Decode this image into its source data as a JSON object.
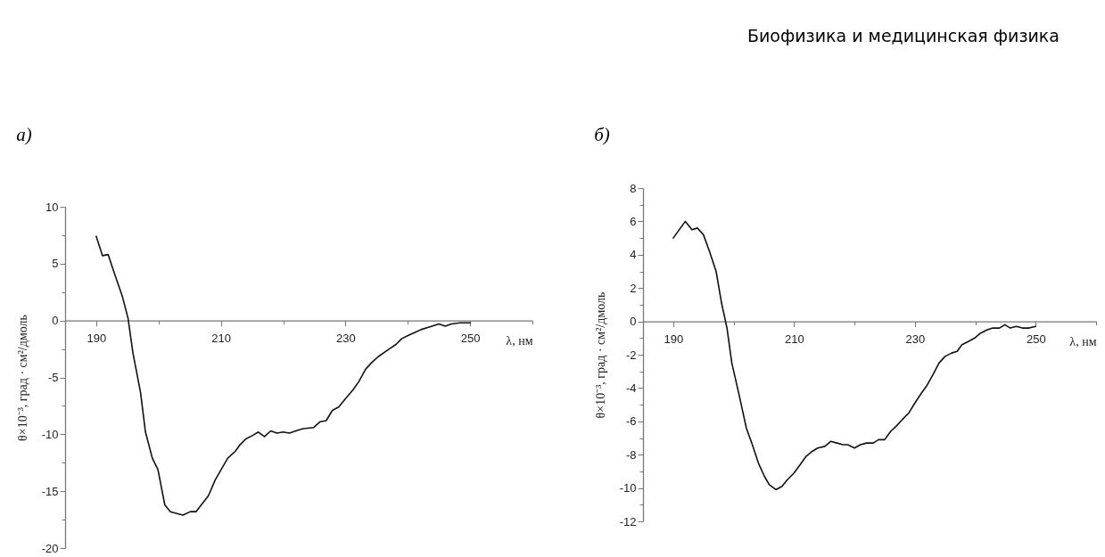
{
  "chart_data": [
    {
      "type": "line",
      "title": "а)",
      "xlabel": "λ, нм",
      "ylabel": "θ×10⁻³, град · см²/дмоль",
      "annotations": [
        "Биофизика и медицинская физика"
      ],
      "x": [
        190,
        191,
        191.9,
        193,
        194.2,
        195.1,
        195.9,
        197.1,
        197.9,
        199,
        199.9,
        201,
        201.9,
        203.9,
        205.1,
        206,
        208,
        209.1,
        211.1,
        212.3,
        213.1,
        214,
        215.1,
        216,
        217,
        218,
        219,
        220,
        221,
        222,
        223.2,
        224.9,
        225.9,
        226.9,
        227.9,
        228.9,
        230.1,
        231.2,
        232.1,
        233.2,
        234.2,
        235.2,
        237,
        238.1,
        239,
        240.1,
        241.3,
        242.1,
        243.3,
        245,
        246,
        247,
        248.4,
        250
      ],
      "series": [
        {
          "color": "#111111",
          "values": [
            7.4,
            5.7,
            5.8,
            4.0,
            2.1,
            0.2,
            -2.9,
            -6.3,
            -9.8,
            -12.1,
            -13.1,
            -16.2,
            -16.8,
            -17.1,
            -16.8,
            -16.8,
            -15.4,
            -14.0,
            -12.1,
            -11.5,
            -10.9,
            -10.4,
            -10.1,
            -9.8,
            -10.2,
            -9.7,
            -9.9,
            -9.8,
            -9.9,
            -9.7,
            -9.5,
            -9.4,
            -8.9,
            -8.8,
            -7.9,
            -7.6,
            -6.8,
            -6.1,
            -5.4,
            -4.3,
            -3.7,
            -3.2,
            -2.5,
            -2.1,
            -1.6,
            -1.3,
            -1.0,
            -0.8,
            -0.6,
            -0.3,
            -0.5,
            -0.3,
            -0.2,
            -0.2
          ]
        }
      ],
      "xlim": [
        185,
        260
      ],
      "xticks": [
        190,
        {
          "value": 200,
          "label": null
        },
        210,
        {
          "value": 220,
          "label": null
        },
        230,
        {
          "value": 240,
          "label": null
        },
        250,
        {
          "value": 260,
          "label": null
        }
      ],
      "ylim": [
        -20,
        10
      ],
      "yticks": [
        -20,
        {
          "value": -17.5,
          "label": null
        },
        -15,
        {
          "value": -12.5,
          "label": null
        },
        -10,
        {
          "value": -7.5,
          "label": null
        },
        -5,
        {
          "value": -2.5,
          "label": null
        },
        0,
        {
          "value": 2.5,
          "label": null
        },
        5,
        {
          "value": 7.5,
          "label": null
        },
        10
      ],
      "grid": false
    },
    {
      "type": "line",
      "title": "б)",
      "xlabel": "λ, нм",
      "ylabel": "θ×10⁻³, град · см²/дмоль",
      "x": [
        190,
        192,
        193.1,
        194,
        195,
        196,
        197.1,
        198,
        198.9,
        199.7,
        200.9,
        202.1,
        203,
        204.1,
        205.1,
        205.9,
        207,
        208,
        208.9,
        210,
        211,
        212,
        213,
        213.9,
        215.1,
        216.1,
        217.1,
        218.1,
        218.9,
        220,
        221,
        222,
        223.1,
        224,
        225,
        226,
        226.9,
        227.9,
        229,
        230,
        231.1,
        231.9,
        233,
        234,
        235,
        236.1,
        237,
        237.8,
        238.9,
        239.9,
        240.9,
        242,
        242.9,
        244,
        244.9,
        245.8,
        246.8,
        247.8,
        248.9,
        250
      ],
      "series": [
        {
          "color": "#111111",
          "values": [
            5.0,
            6.0,
            5.5,
            5.6,
            5.2,
            4.2,
            3.0,
            1.1,
            -0.4,
            -2.5,
            -4.4,
            -6.4,
            -7.3,
            -8.5,
            -9.3,
            -9.8,
            -10.1,
            -9.9,
            -9.5,
            -9.1,
            -8.6,
            -8.1,
            -7.8,
            -7.6,
            -7.5,
            -7.2,
            -7.3,
            -7.4,
            -7.4,
            -7.6,
            -7.4,
            -7.3,
            -7.3,
            -7.1,
            -7.1,
            -6.6,
            -6.3,
            -5.9,
            -5.5,
            -4.9,
            -4.3,
            -3.9,
            -3.2,
            -2.5,
            -2.1,
            -1.9,
            -1.8,
            -1.4,
            -1.2,
            -1.0,
            -0.7,
            -0.5,
            -0.4,
            -0.4,
            -0.2,
            -0.4,
            -0.3,
            -0.4,
            -0.4,
            -0.3
          ]
        }
      ],
      "xlim": [
        185,
        260
      ],
      "xticks": [
        190,
        {
          "value": 200,
          "label": null
        },
        210,
        {
          "value": 220,
          "label": null
        },
        230,
        {
          "value": 240,
          "label": null
        },
        250,
        {
          "value": 260,
          "label": null
        }
      ],
      "ylim": [
        -12,
        8
      ],
      "yticks": [
        -12,
        {
          "value": -11,
          "label": null
        },
        -10,
        {
          "value": -9,
          "label": null
        },
        -8,
        {
          "value": -7,
          "label": null
        },
        -6,
        {
          "value": -5,
          "label": null
        },
        -4,
        {
          "value": -3,
          "label": null
        },
        -2,
        {
          "value": -1,
          "label": null
        },
        0,
        {
          "value": 1,
          "label": null
        },
        2,
        {
          "value": 3,
          "label": null
        },
        4,
        {
          "value": 5,
          "label": null
        },
        6,
        {
          "value": 7,
          "label": null
        },
        8
      ],
      "grid": false
    }
  ]
}
